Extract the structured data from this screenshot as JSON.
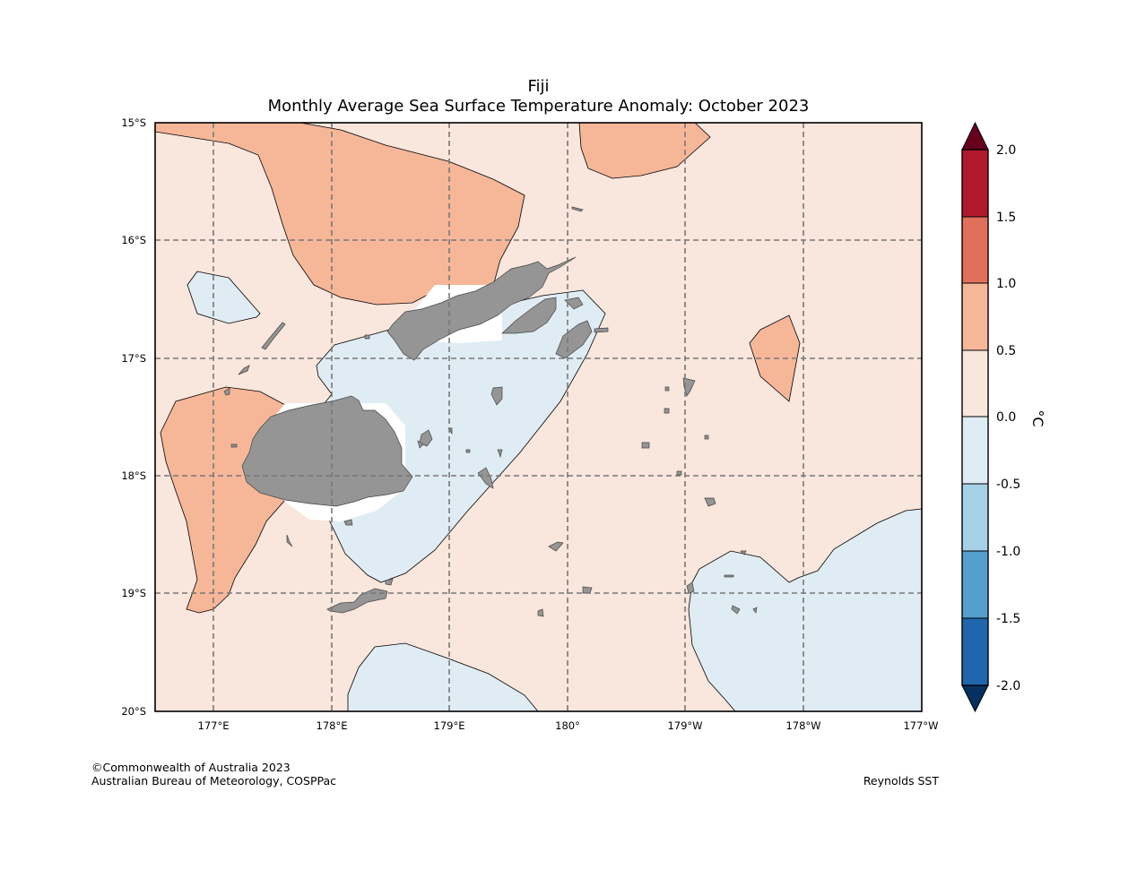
{
  "title": {
    "line1": "Fiji",
    "line2": "Monthly Average Sea Surface Temperature Anomaly: October 2023"
  },
  "axes": {
    "lat_labels": [
      "15°S",
      "16°S",
      "17°S",
      "18°S",
      "19°S",
      "20°S"
    ],
    "lon_labels": [
      "177°E",
      "178°E",
      "179°E",
      "180°",
      "179°W",
      "178°W",
      "177°W"
    ]
  },
  "colorbar": {
    "unit": "°C",
    "tick_labels": [
      "2.0",
      "1.5",
      "1.0",
      "0.5",
      "0.0",
      "-0.5",
      "-1.0",
      "-1.5",
      "-2.0"
    ],
    "colors": {
      "over": "#67001f",
      "1.5_to_2.0": "#b2182b",
      "1.0_to_1.5": "#e0705b",
      "0.5_to_1.0": "#f6b799",
      "0.0_to_0.5": "#f9e6dc",
      "-0.5_to_0.0": "#e0ecf3",
      "-1.0_to_-0.5": "#a6d0e6",
      "-1.5_to_-1.0": "#559fcd",
      "-2.0_to_-1.5": "#2066ad",
      "under": "#053061"
    }
  },
  "map_colors": {
    "land": "#959595",
    "background_anomaly": "#f9e6dc",
    "warm_anomaly": "#f6b799",
    "cool_anomaly": "#e0ecf3",
    "missing": "#ffffff"
  },
  "footer": {
    "copyright": "©Commonwealth of Australia 2023",
    "agency": "Australian Bureau of Meteorology, COSPPac",
    "source": "Reynolds SST"
  }
}
